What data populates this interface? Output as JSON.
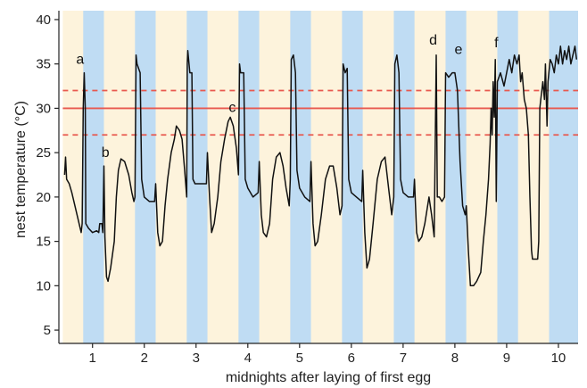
{
  "chart_data": {
    "type": "line",
    "title": "",
    "xlabel": "midnights after laying of first egg",
    "ylabel": "nest temperature (°C)",
    "xlim": [
      0.35,
      10.38
    ],
    "ylim": [
      3.5,
      41
    ],
    "x_ticks": [
      1,
      2,
      3,
      4,
      5,
      6,
      7,
      8,
      9,
      10
    ],
    "y_ticks": [
      5,
      10,
      15,
      20,
      25,
      30,
      35,
      40
    ],
    "grid": false,
    "colors": {
      "day_band": "#fdf3dc",
      "night_band": "#bfdcf3",
      "reference_line": "#e8594f",
      "trace": "#111111"
    },
    "night_bands": [
      [
        0.82,
        1.22
      ],
      [
        1.82,
        2.22
      ],
      [
        2.82,
        3.22
      ],
      [
        3.82,
        4.22
      ],
      [
        4.82,
        5.22
      ],
      [
        5.82,
        6.22
      ],
      [
        6.82,
        7.22
      ],
      [
        7.82,
        8.22
      ],
      [
        8.82,
        9.22
      ],
      [
        9.82,
        10.38
      ]
    ],
    "reference_lines": [
      {
        "y": 30,
        "style": "solid"
      },
      {
        "y": 32,
        "style": "dashed"
      },
      {
        "y": 27,
        "style": "dashed"
      }
    ],
    "series": [
      {
        "points": [
          [
            0.46,
            22.5
          ],
          [
            0.48,
            24.5
          ],
          [
            0.5,
            22.0
          ],
          [
            0.55,
            21.5
          ],
          [
            0.6,
            20.5
          ],
          [
            0.66,
            19.0
          ],
          [
            0.72,
            17.5
          ],
          [
            0.78,
            16.0
          ],
          [
            0.8,
            17.0
          ],
          [
            0.82,
            30.0
          ],
          [
            0.84,
            34.0
          ],
          [
            0.86,
            30.0
          ],
          [
            0.87,
            17.0
          ],
          [
            0.92,
            16.5
          ],
          [
            1.0,
            16.0
          ],
          [
            1.08,
            16.2
          ],
          [
            1.12,
            16.0
          ],
          [
            1.14,
            17.0
          ],
          [
            1.18,
            17.0
          ],
          [
            1.2,
            16.0
          ],
          [
            1.22,
            23.5
          ],
          [
            1.24,
            15.5
          ],
          [
            1.27,
            11.0
          ],
          [
            1.3,
            10.5
          ],
          [
            1.35,
            12.0
          ],
          [
            1.42,
            15.0
          ],
          [
            1.46,
            20.0
          ],
          [
            1.5,
            23.0
          ],
          [
            1.55,
            24.3
          ],
          [
            1.62,
            24.0
          ],
          [
            1.7,
            22.5
          ],
          [
            1.76,
            20.5
          ],
          [
            1.8,
            19.5
          ],
          [
            1.82,
            20.0
          ],
          [
            1.84,
            36.0
          ],
          [
            1.86,
            35.0
          ],
          [
            1.92,
            34.0
          ],
          [
            1.95,
            22.0
          ],
          [
            2.0,
            20.0
          ],
          [
            2.1,
            19.5
          ],
          [
            2.2,
            19.5
          ],
          [
            2.22,
            21.5
          ],
          [
            2.26,
            16.0
          ],
          [
            2.3,
            14.5
          ],
          [
            2.35,
            15.0
          ],
          [
            2.4,
            19.0
          ],
          [
            2.45,
            22.0
          ],
          [
            2.52,
            25.0
          ],
          [
            2.58,
            26.5
          ],
          [
            2.62,
            28.0
          ],
          [
            2.68,
            27.5
          ],
          [
            2.73,
            26.5
          ],
          [
            2.78,
            23.0
          ],
          [
            2.82,
            20.0
          ],
          [
            2.83,
            35.0
          ],
          [
            2.84,
            36.5
          ],
          [
            2.88,
            34.0
          ],
          [
            2.92,
            34.0
          ],
          [
            2.94,
            22.0
          ],
          [
            2.98,
            21.5
          ],
          [
            3.1,
            21.5
          ],
          [
            3.2,
            21.5
          ],
          [
            3.22,
            25.0
          ],
          [
            3.26,
            20.0
          ],
          [
            3.3,
            16.0
          ],
          [
            3.35,
            17.0
          ],
          [
            3.42,
            20.0
          ],
          [
            3.48,
            24.0
          ],
          [
            3.55,
            26.5
          ],
          [
            3.62,
            28.5
          ],
          [
            3.66,
            29.0
          ],
          [
            3.72,
            28.0
          ],
          [
            3.78,
            25.5
          ],
          [
            3.82,
            22.5
          ],
          [
            3.84,
            35.0
          ],
          [
            3.86,
            34.0
          ],
          [
            3.92,
            34.0
          ],
          [
            3.95,
            22.0
          ],
          [
            4.0,
            21.0
          ],
          [
            4.1,
            20.0
          ],
          [
            4.2,
            20.5
          ],
          [
            4.22,
            24.0
          ],
          [
            4.26,
            18.0
          ],
          [
            4.3,
            16.0
          ],
          [
            4.36,
            15.5
          ],
          [
            4.42,
            17.0
          ],
          [
            4.48,
            22.0
          ],
          [
            4.55,
            24.5
          ],
          [
            4.62,
            25.0
          ],
          [
            4.68,
            23.5
          ],
          [
            4.74,
            21.0
          ],
          [
            4.8,
            19.0
          ],
          [
            4.82,
            22.0
          ],
          [
            4.84,
            35.5
          ],
          [
            4.88,
            36.0
          ],
          [
            4.92,
            34.0
          ],
          [
            4.95,
            23.0
          ],
          [
            5.0,
            21.0
          ],
          [
            5.1,
            20.0
          ],
          [
            5.2,
            19.5
          ],
          [
            5.22,
            24.0
          ],
          [
            5.26,
            17.0
          ],
          [
            5.3,
            14.5
          ],
          [
            5.35,
            15.0
          ],
          [
            5.42,
            18.0
          ],
          [
            5.5,
            22.0
          ],
          [
            5.58,
            23.5
          ],
          [
            5.65,
            23.5
          ],
          [
            5.72,
            21.0
          ],
          [
            5.78,
            18.0
          ],
          [
            5.82,
            19.0
          ],
          [
            5.84,
            35.0
          ],
          [
            5.88,
            34.0
          ],
          [
            5.92,
            34.5
          ],
          [
            5.95,
            22.0
          ],
          [
            6.0,
            20.5
          ],
          [
            6.1,
            20.0
          ],
          [
            6.2,
            19.5
          ],
          [
            6.22,
            23.0
          ],
          [
            6.26,
            16.0
          ],
          [
            6.3,
            12.0
          ],
          [
            6.35,
            13.0
          ],
          [
            6.42,
            17.0
          ],
          [
            6.5,
            22.0
          ],
          [
            6.58,
            24.0
          ],
          [
            6.65,
            24.5
          ],
          [
            6.72,
            21.0
          ],
          [
            6.78,
            18.0
          ],
          [
            6.82,
            20.0
          ],
          [
            6.84,
            35.0
          ],
          [
            6.88,
            36.0
          ],
          [
            6.92,
            34.0
          ],
          [
            6.95,
            22.0
          ],
          [
            7.0,
            20.5
          ],
          [
            7.1,
            20.0
          ],
          [
            7.2,
            20.0
          ],
          [
            7.22,
            22.0
          ],
          [
            7.26,
            16.0
          ],
          [
            7.3,
            15.0
          ],
          [
            7.36,
            15.5
          ],
          [
            7.42,
            17.0
          ],
          [
            7.5,
            20.0
          ],
          [
            7.55,
            18.0
          ],
          [
            7.6,
            15.5
          ],
          [
            7.64,
            36.0
          ],
          [
            7.66,
            20.0
          ],
          [
            7.7,
            20.0
          ],
          [
            7.75,
            19.5
          ],
          [
            7.8,
            20.0
          ],
          [
            7.82,
            34.0
          ],
          [
            7.88,
            33.5
          ],
          [
            7.95,
            34.0
          ],
          [
            8.0,
            34.0
          ],
          [
            8.05,
            32.0
          ],
          [
            8.1,
            24.0
          ],
          [
            8.15,
            19.0
          ],
          [
            8.2,
            18.0
          ],
          [
            8.22,
            19.0
          ],
          [
            8.26,
            14.0
          ],
          [
            8.3,
            10.0
          ],
          [
            8.36,
            10.0
          ],
          [
            8.42,
            10.5
          ],
          [
            8.5,
            11.5
          ],
          [
            8.55,
            15.0
          ],
          [
            8.6,
            18.0
          ],
          [
            8.65,
            22.0
          ],
          [
            8.68,
            26.0
          ],
          [
            8.7,
            30.0
          ],
          [
            8.72,
            27.0
          ],
          [
            8.74,
            33.0
          ],
          [
            8.76,
            29.0
          ],
          [
            8.78,
            35.5
          ],
          [
            8.8,
            19.5
          ],
          [
            8.82,
            33.0
          ],
          [
            8.88,
            34.0
          ],
          [
            8.95,
            32.5
          ],
          [
            9.0,
            34.0
          ],
          [
            9.05,
            35.5
          ],
          [
            9.1,
            34.0
          ],
          [
            9.15,
            36.0
          ],
          [
            9.2,
            35.0
          ],
          [
            9.24,
            36.0
          ],
          [
            9.27,
            33.0
          ],
          [
            9.3,
            34.0
          ],
          [
            9.34,
            31.0
          ],
          [
            9.38,
            30.0
          ],
          [
            9.42,
            27.0
          ],
          [
            9.45,
            20.0
          ],
          [
            9.48,
            14.0
          ],
          [
            9.5,
            13.0
          ],
          [
            9.6,
            13.0
          ],
          [
            9.62,
            15.0
          ],
          [
            9.64,
            30.0
          ],
          [
            9.66,
            31.0
          ],
          [
            9.7,
            33.0
          ],
          [
            9.73,
            31.0
          ],
          [
            9.75,
            35.0
          ],
          [
            9.78,
            28.0
          ],
          [
            9.8,
            33.0
          ],
          [
            9.84,
            35.5
          ],
          [
            9.88,
            35.0
          ],
          [
            9.92,
            34.0
          ],
          [
            9.96,
            36.0
          ],
          [
            10.0,
            35.0
          ],
          [
            10.04,
            37.0
          ],
          [
            10.08,
            35.0
          ],
          [
            10.12,
            36.5
          ],
          [
            10.16,
            35.5
          ],
          [
            10.2,
            37.0
          ],
          [
            10.24,
            35.0
          ],
          [
            10.28,
            36.0
          ],
          [
            10.32,
            37.0
          ],
          [
            10.35,
            35.5
          ]
        ]
      }
    ],
    "annotations": [
      {
        "text": "a",
        "x": 0.76,
        "y": 35.0
      },
      {
        "text": "b",
        "x": 1.25,
        "y": 24.5
      },
      {
        "text": "c",
        "x": 3.7,
        "y": 29.6
      },
      {
        "text": "d",
        "x": 7.58,
        "y": 37.2
      },
      {
        "text": "e",
        "x": 8.07,
        "y": 36.1
      },
      {
        "text": "f",
        "x": 8.8,
        "y": 36.9
      }
    ]
  }
}
